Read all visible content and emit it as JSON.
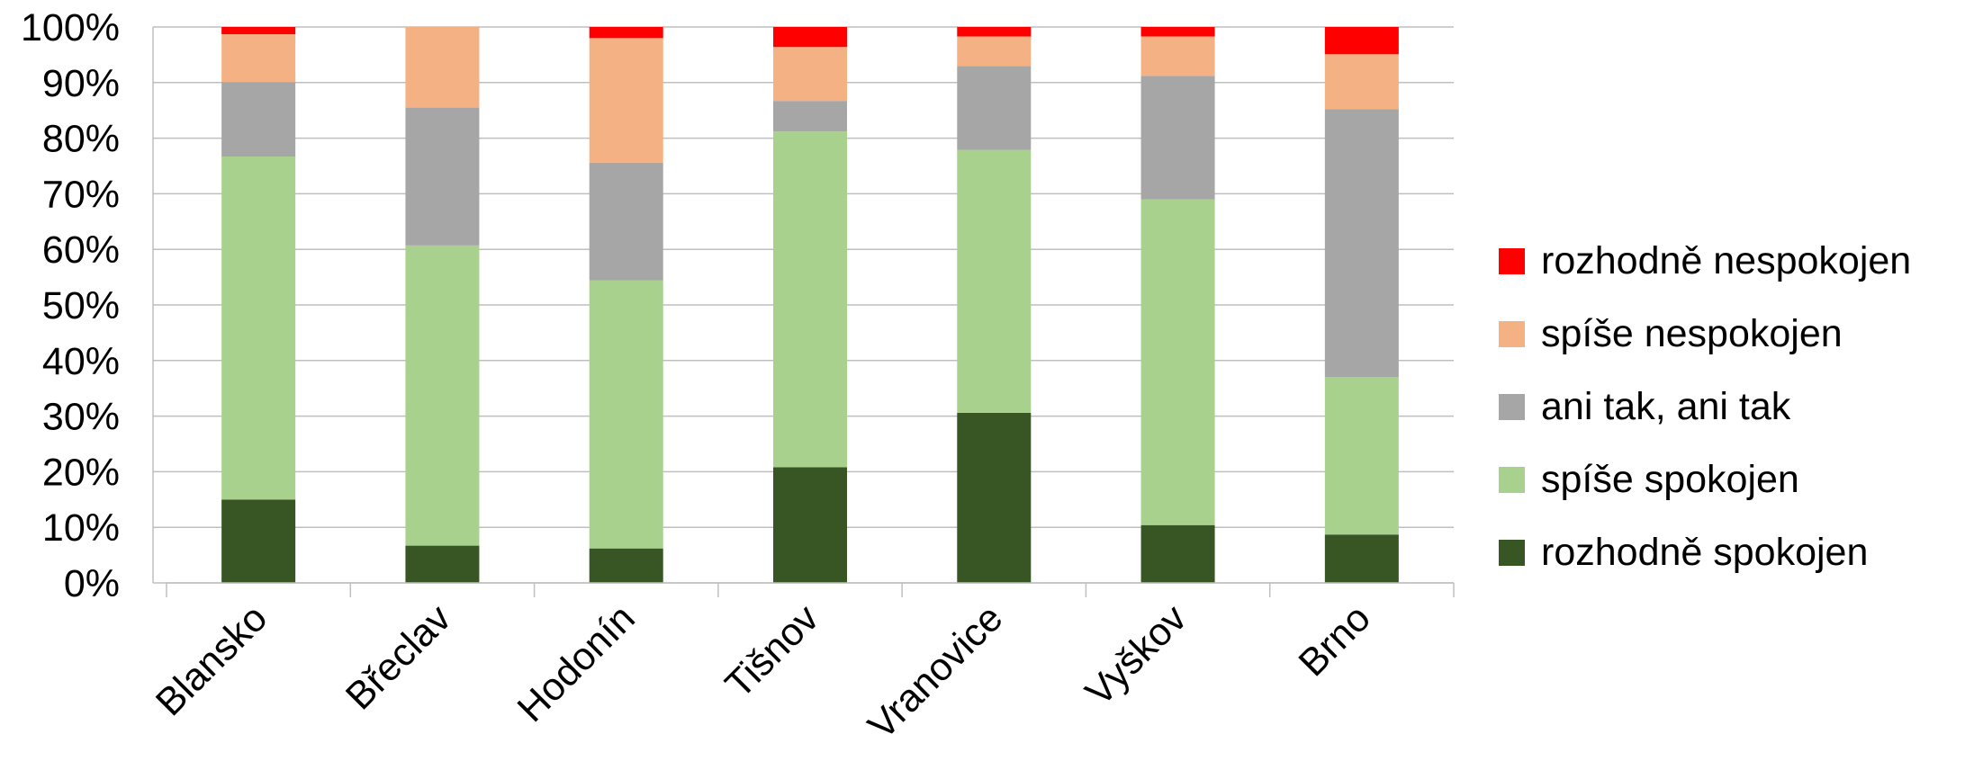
{
  "chart_data": {
    "type": "bar",
    "stacked": true,
    "categories": [
      "Blansko",
      "Břeclav",
      "Hodonín",
      "Tišnov",
      "Vranovice",
      "Vyškov",
      "Brno"
    ],
    "y_ticks": [
      "0%",
      "10%",
      "20%",
      "30%",
      "40%",
      "50%",
      "60%",
      "70%",
      "80%",
      "90%",
      "100%"
    ],
    "ylim": [
      0,
      100
    ],
    "grid": true,
    "legend_position": "right",
    "series": [
      {
        "name": "rozhodně spokojen",
        "color": "#375623",
        "values": [
          15,
          6.7,
          6.2,
          20.8,
          30.6,
          10.4,
          8.7
        ]
      },
      {
        "name": "spíše spokojen",
        "color": "#A9D18E",
        "values": [
          61.7,
          54,
          48.2,
          60.4,
          47.3,
          58.6,
          28.3
        ]
      },
      {
        "name": "ani tak, ani tak",
        "color": "#A6A6A6",
        "values": [
          13.4,
          24.8,
          21.2,
          5.5,
          15.1,
          22.2,
          48.2
        ]
      },
      {
        "name": "spíše nespokojen",
        "color": "#F4B183",
        "values": [
          8.6,
          14.5,
          22.4,
          9.7,
          5.3,
          7.1,
          9.9
        ]
      },
      {
        "name": "rozhodně nespokojen",
        "color": "#FF0000",
        "values": [
          1.3,
          0,
          2.0,
          3.6,
          1.7,
          1.7,
          4.9
        ]
      }
    ]
  }
}
